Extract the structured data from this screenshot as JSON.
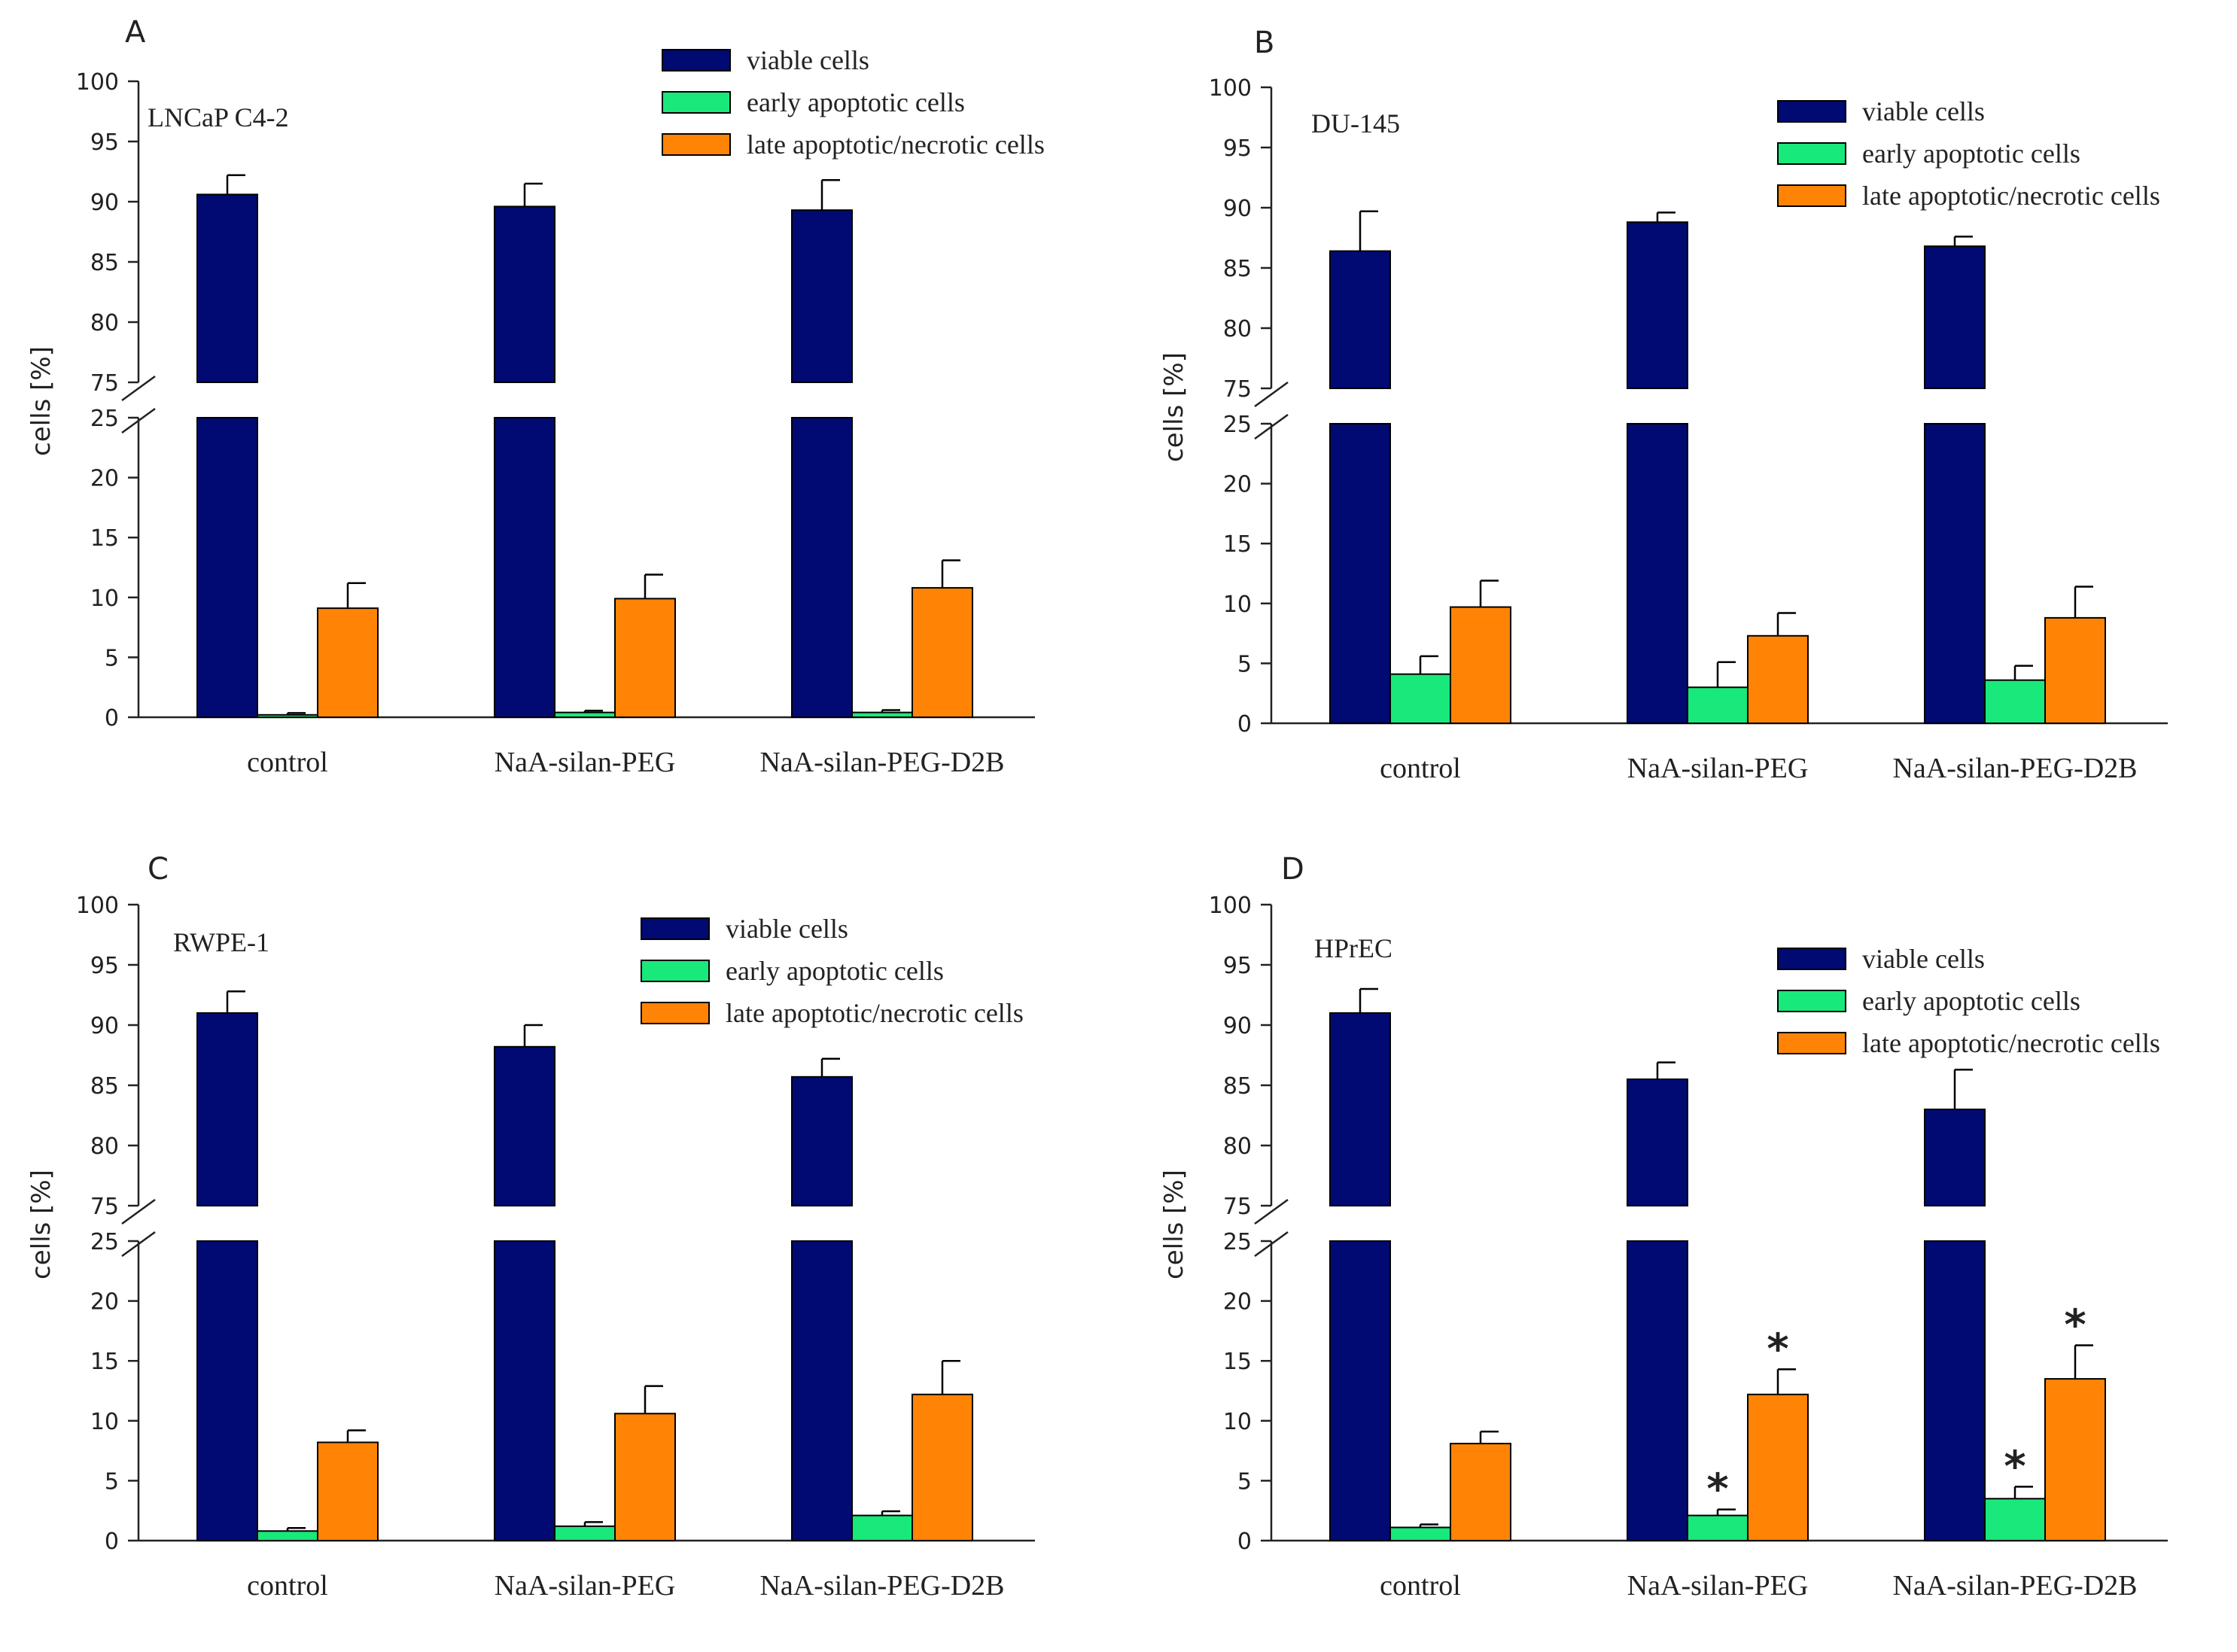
{
  "colors": {
    "viable": "#000a72",
    "early": "#19e87a",
    "late": "#ff8405",
    "axis": "#222222"
  },
  "chart_data": [
    {
      "panel": "A",
      "type": "bar",
      "title": "LNCaP C4-2",
      "ylabel": "cells [%]",
      "categories": [
        "control",
        "NaA-silan-PEG",
        "NaA-silan-PEG-D2B"
      ],
      "upper_ticks": [
        "75",
        "80",
        "85",
        "90",
        "95",
        "100"
      ],
      "lower_ticks": [
        "0",
        "5",
        "10",
        "15",
        "20",
        "25"
      ],
      "ylim_lower": [
        0,
        25
      ],
      "ylim_upper": [
        75,
        100
      ],
      "legend": [
        "viable cells",
        "early apoptotic cells",
        "late apoptotic/necrotic cells"
      ],
      "series": [
        {
          "name": "viable cells",
          "values": [
            90.6,
            89.6,
            89.3
          ],
          "errors": [
            1.6,
            1.9,
            2.5
          ],
          "stars": [
            false,
            false,
            false
          ]
        },
        {
          "name": "early apoptotic cells",
          "values": [
            0.2,
            0.4,
            0.4
          ],
          "errors": [
            0.15,
            0.15,
            0.2
          ],
          "stars": [
            false,
            false,
            false
          ]
        },
        {
          "name": "late apoptotic/necrotic cells",
          "values": [
            9.1,
            9.9,
            10.8
          ],
          "errors": [
            2.1,
            2.0,
            2.3
          ],
          "stars": [
            false,
            false,
            false
          ]
        }
      ]
    },
    {
      "panel": "B",
      "type": "bar",
      "title": "DU-145",
      "ylabel": "cells [%]",
      "categories": [
        "control",
        "NaA-silan-PEG",
        "NaA-silan-PEG-D2B"
      ],
      "upper_ticks": [
        "75",
        "80",
        "85",
        "90",
        "95",
        "100"
      ],
      "lower_ticks": [
        "0",
        "5",
        "10",
        "15",
        "20",
        "25"
      ],
      "ylim_lower": [
        0,
        25
      ],
      "ylim_upper": [
        75,
        100
      ],
      "legend": [
        "viable cells",
        "early apoptotic cells",
        "late apoptotic/necrotic cells"
      ],
      "series": [
        {
          "name": "viable cells",
          "values": [
            86.4,
            88.8,
            86.8
          ],
          "errors": [
            3.3,
            0.8,
            0.8
          ],
          "stars": [
            false,
            false,
            false
          ]
        },
        {
          "name": "early apoptotic cells",
          "values": [
            4.1,
            3.0,
            3.6
          ],
          "errors": [
            1.5,
            2.1,
            1.2
          ],
          "stars": [
            false,
            false,
            false
          ]
        },
        {
          "name": "late apoptotic/necrotic cells",
          "values": [
            9.7,
            7.3,
            8.8
          ],
          "errors": [
            2.2,
            1.9,
            2.6
          ],
          "stars": [
            false,
            false,
            false
          ]
        }
      ]
    },
    {
      "panel": "C",
      "type": "bar",
      "title": "RWPE-1",
      "ylabel": "cells [%]",
      "categories": [
        "control",
        "NaA-silan-PEG",
        "NaA-silan-PEG-D2B"
      ],
      "upper_ticks": [
        "75",
        "80",
        "85",
        "90",
        "95",
        "100"
      ],
      "lower_ticks": [
        "0",
        "5",
        "10",
        "15",
        "20",
        "25"
      ],
      "ylim_lower": [
        0,
        25
      ],
      "ylim_upper": [
        75,
        100
      ],
      "legend": [
        "viable cells",
        "early apoptotic cells",
        "late apoptotic/necrotic cells"
      ],
      "series": [
        {
          "name": "viable cells",
          "values": [
            91.0,
            88.2,
            85.7
          ],
          "errors": [
            1.8,
            1.8,
            1.5
          ],
          "stars": [
            false,
            false,
            false
          ]
        },
        {
          "name": "early apoptotic cells",
          "values": [
            0.8,
            1.2,
            2.1
          ],
          "errors": [
            0.25,
            0.35,
            0.35
          ],
          "stars": [
            false,
            false,
            false
          ]
        },
        {
          "name": "late apoptotic/necrotic cells",
          "values": [
            8.2,
            10.6,
            12.2
          ],
          "errors": [
            1.0,
            2.3,
            2.8
          ],
          "stars": [
            false,
            false,
            false
          ]
        }
      ]
    },
    {
      "panel": "D",
      "type": "bar",
      "title": "HPrEC",
      "ylabel": "cells [%]",
      "categories": [
        "control",
        "NaA-silan-PEG",
        "NaA-silan-PEG-D2B"
      ],
      "upper_ticks": [
        "75",
        "80",
        "85",
        "90",
        "95",
        "100"
      ],
      "lower_ticks": [
        "0",
        "5",
        "10",
        "15",
        "20",
        "25"
      ],
      "ylim_lower": [
        0,
        25
      ],
      "ylim_upper": [
        75,
        100
      ],
      "legend": [
        "viable cells",
        "early apoptotic cells",
        "late apoptotic/necrotic cells"
      ],
      "series": [
        {
          "name": "viable cells",
          "values": [
            91.0,
            85.5,
            83.0
          ],
          "errors": [
            2.0,
            1.4,
            3.3
          ],
          "stars": [
            false,
            false,
            false
          ]
        },
        {
          "name": "early apoptotic cells",
          "values": [
            1.1,
            2.1,
            3.5
          ],
          "errors": [
            0.25,
            0.5,
            1.0
          ],
          "stars": [
            false,
            true,
            true
          ]
        },
        {
          "name": "late apoptotic/necrotic cells",
          "values": [
            8.1,
            12.2,
            13.5
          ],
          "errors": [
            1.0,
            2.1,
            2.8
          ],
          "stars": [
            false,
            true,
            true
          ]
        }
      ]
    }
  ]
}
